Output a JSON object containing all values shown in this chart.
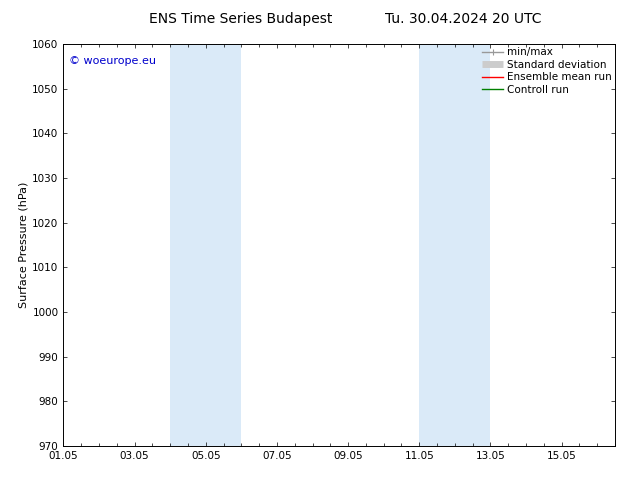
{
  "title_left": "ENS Time Series Budapest",
  "title_right": "Tu. 30.04.2024 20 UTC",
  "ylabel": "Surface Pressure (hPa)",
  "ylim": [
    970,
    1060
  ],
  "yticks": [
    970,
    980,
    990,
    1000,
    1010,
    1020,
    1030,
    1040,
    1050,
    1060
  ],
  "xlim": [
    0,
    15.5
  ],
  "xtick_positions": [
    0,
    2,
    4,
    6,
    8,
    10,
    12,
    14
  ],
  "xtick_labels": [
    "01.05",
    "03.05",
    "05.05",
    "07.05",
    "09.05",
    "11.05",
    "13.05",
    "15.05"
  ],
  "shaded_bands": [
    {
      "xmin": 3.0,
      "xmax": 5.0
    },
    {
      "xmin": 10.0,
      "xmax": 12.0
    }
  ],
  "band_color": "#daeaf8",
  "copyright_text": "© woeurope.eu",
  "copyright_color": "#0000cc",
  "legend_items": [
    {
      "label": "min/max",
      "color": "#999999",
      "lw": 1.0
    },
    {
      "label": "Standard deviation",
      "color": "#cccccc",
      "lw": 5
    },
    {
      "label": "Ensemble mean run",
      "color": "#ff0000",
      "lw": 1.0
    },
    {
      "label": "Controll run",
      "color": "#008000",
      "lw": 1.0
    }
  ],
  "bg_color": "#ffffff",
  "title_fontsize": 10,
  "axis_label_fontsize": 8,
  "tick_fontsize": 7.5,
  "legend_fontsize": 7.5,
  "copyright_fontsize": 8
}
